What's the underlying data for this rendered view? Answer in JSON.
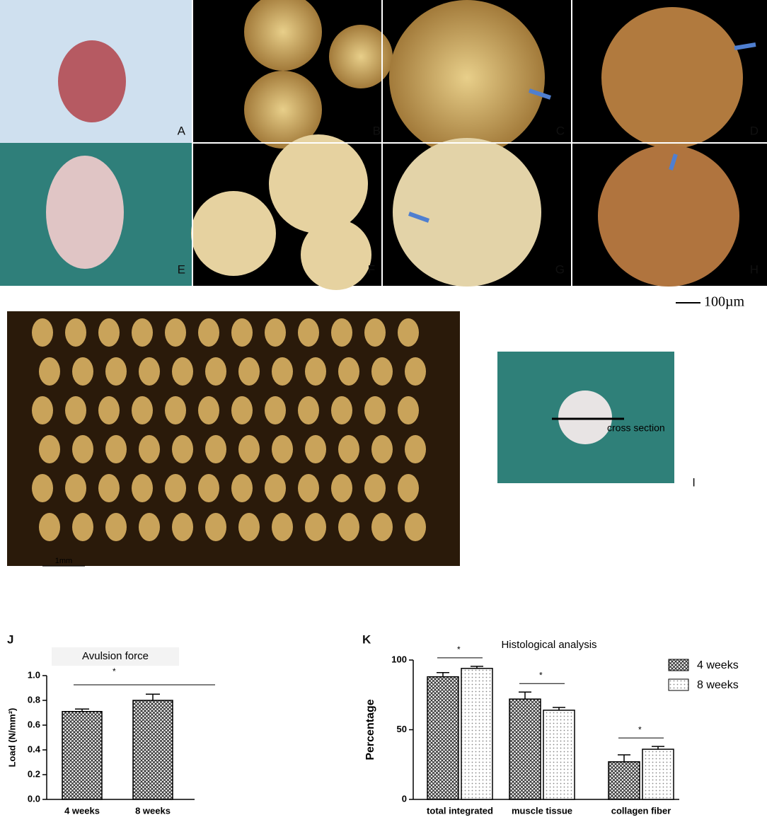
{
  "panels": {
    "labels": [
      "A",
      "B",
      "C",
      "D",
      "E",
      "F",
      "G",
      "H",
      "I"
    ],
    "scale_bar_micro": "100µm",
    "scale_bar_mm": "1mm",
    "inset_label": "cross section"
  },
  "chart_data": [
    {
      "type": "bar",
      "panel_label": "J",
      "title": "Avulsion force",
      "y_label": "Load (N/mm²)",
      "categories": [
        "4 weeks",
        "8 weeks"
      ],
      "values": [
        0.71,
        0.8
      ],
      "errors": [
        0.02,
        0.05
      ],
      "color": "#666666",
      "ylim": [
        0,
        1
      ],
      "yticks": [
        {
          "value": 0,
          "label": "0.0"
        },
        0.2,
        0.4,
        0.6,
        0.8,
        {
          "value": 1,
          "label": "1.0"
        }
      ],
      "significance": [
        "*"
      ]
    },
    {
      "type": "grouped_bar",
      "panel_label": "K",
      "title": "Histological analysis",
      "y_label": "Percentage",
      "categories": [
        "total integrated",
        "muscle tissue",
        "collagen fiber"
      ],
      "series": [
        {
          "name": "4 weeks",
          "color": "#333333",
          "values": [
            88,
            72,
            27
          ],
          "errors": [
            3,
            5,
            5
          ]
        },
        {
          "name": "8 weeks",
          "color": "#aaaaaa",
          "values": [
            94,
            64,
            36
          ],
          "errors": [
            1.5,
            2,
            2
          ]
        }
      ],
      "ylim": [
        0,
        100
      ],
      "yticks": [
        0,
        50,
        100
      ],
      "significance": [
        "*",
        "*",
        "*"
      ]
    }
  ]
}
